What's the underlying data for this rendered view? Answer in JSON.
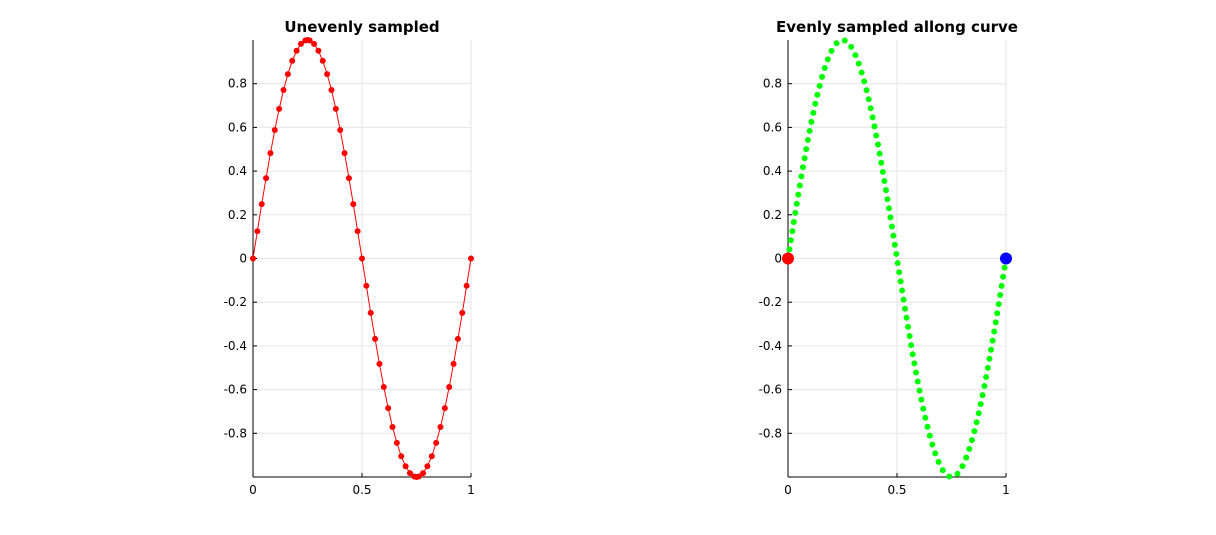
{
  "chart_data": [
    {
      "type": "line",
      "title": "Unevenly sampled",
      "xlabel": "",
      "ylabel": "",
      "xlim": [
        0,
        1
      ],
      "ylim": [
        -1,
        1
      ],
      "grid": true,
      "xticks": [
        0,
        0.5,
        1
      ],
      "xtick_labels": [
        "0",
        "0.5",
        "1"
      ],
      "yticks": [
        -0.8,
        -0.6,
        -0.4,
        -0.2,
        0,
        0.2,
        0.4,
        0.6,
        0.8
      ],
      "ytick_labels": [
        "-0.8",
        "-0.6",
        "-0.4",
        "-0.2",
        "0",
        "0.2",
        "0.4",
        "0.6",
        "0.8"
      ],
      "series": [
        {
          "color": "#ff0000",
          "line": true,
          "marker": "dot",
          "x": [
            0,
            0.02,
            0.04,
            0.06,
            0.08,
            0.1,
            0.12,
            0.14,
            0.16,
            0.18,
            0.2,
            0.22,
            0.24,
            0.25,
            0.26,
            0.28,
            0.3,
            0.32,
            0.34,
            0.36,
            0.38,
            0.4,
            0.42,
            0.44,
            0.46,
            0.48,
            0.5,
            0.52,
            0.54,
            0.56,
            0.58,
            0.6,
            0.62,
            0.64,
            0.66,
            0.68,
            0.7,
            0.72,
            0.74,
            0.75,
            0.76,
            0.78,
            0.8,
            0.82,
            0.84,
            0.86,
            0.88,
            0.9,
            0.92,
            0.94,
            0.96,
            0.98,
            1
          ],
          "y": [
            0,
            0.125,
            0.249,
            0.368,
            0.482,
            0.588,
            0.685,
            0.771,
            0.844,
            0.905,
            0.951,
            0.982,
            0.998,
            1,
            0.998,
            0.982,
            0.951,
            0.905,
            0.844,
            0.771,
            0.685,
            0.588,
            0.482,
            0.368,
            0.249,
            0.125,
            0,
            -0.125,
            -0.249,
            -0.368,
            -0.482,
            -0.588,
            -0.685,
            -0.771,
            -0.844,
            -0.905,
            -0.951,
            -0.982,
            -0.998,
            -1,
            -0.998,
            -0.982,
            -0.951,
            -0.905,
            -0.844,
            -0.771,
            -0.685,
            -0.588,
            -0.482,
            -0.368,
            -0.249,
            -0.125,
            0
          ]
        }
      ]
    },
    {
      "type": "scatter",
      "title": "Evenly sampled allong curve",
      "xlabel": "",
      "ylabel": "",
      "xlim": [
        0,
        1
      ],
      "ylim": [
        -1,
        1
      ],
      "grid": true,
      "xticks": [
        0,
        0.5,
        1
      ],
      "xtick_labels": [
        "0",
        "0.5",
        "1"
      ],
      "yticks": [
        -0.8,
        -0.6,
        -0.4,
        -0.2,
        0,
        0.2,
        0.4,
        0.6,
        0.8
      ],
      "ytick_labels": [
        "-0.8",
        "-0.6",
        "-0.4",
        "-0.2",
        "0",
        "0.2",
        "0.4",
        "0.6",
        "0.8"
      ],
      "series": [
        {
          "color": "#00ff00",
          "marker": "dot",
          "function": "sin(2*pi*x)",
          "sampling": "even-arc-length",
          "point_count": 100
        },
        {
          "color": "#ff0000",
          "marker": "large-dot",
          "x": [
            0
          ],
          "y": [
            0
          ]
        },
        {
          "color": "#0000ff",
          "marker": "large-dot",
          "x": [
            1
          ],
          "y": [
            0
          ]
        }
      ]
    }
  ]
}
